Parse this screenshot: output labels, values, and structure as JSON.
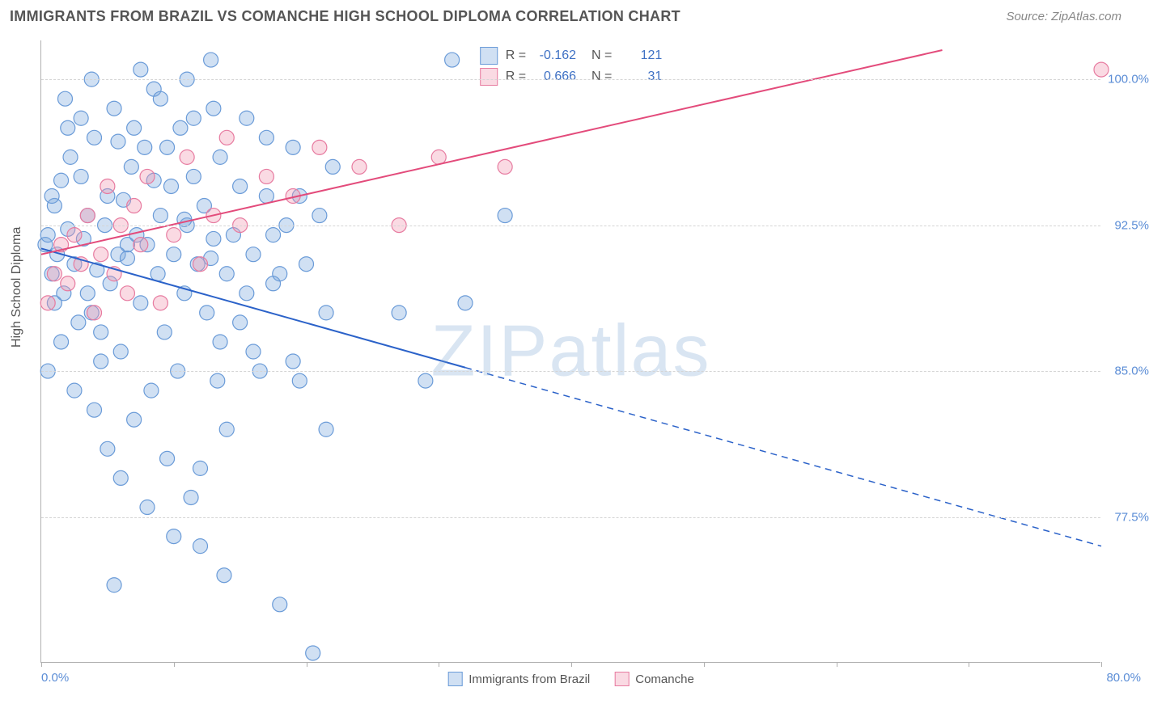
{
  "header": {
    "title": "IMMIGRANTS FROM BRAZIL VS COMANCHE HIGH SCHOOL DIPLOMA CORRELATION CHART",
    "source": "Source: ZipAtlas.com"
  },
  "watermark": "ZIPatlas",
  "chart": {
    "type": "scatter",
    "background_color": "#ffffff",
    "grid_color": "#d5d5d5",
    "axis_color": "#b0b0b0",
    "ylabel": "High School Diploma",
    "ylabel_fontsize": 16,
    "xlim": [
      0,
      80
    ],
    "ylim": [
      70,
      102
    ],
    "x_ticks": [
      0,
      10,
      20,
      30,
      40,
      50,
      60,
      70,
      80
    ],
    "x_min_label": "0.0%",
    "x_max_label": "80.0%",
    "y_ticks": [
      {
        "value": 77.5,
        "label": "77.5%"
      },
      {
        "value": 85.0,
        "label": "85.0%"
      },
      {
        "value": 92.5,
        "label": "92.5%"
      },
      {
        "value": 100.0,
        "label": "100.0%"
      }
    ],
    "tick_label_color": "#5b8dd6",
    "series": [
      {
        "name": "Immigrants from Brazil",
        "color_fill": "rgba(120,165,220,0.35)",
        "color_stroke": "#6a9bd8",
        "marker_radius": 9,
        "R": "-0.162",
        "N": "121",
        "trend": {
          "x1": 0,
          "y1": 91.3,
          "x2": 80,
          "y2": 76.0,
          "solid_until_x": 32,
          "color": "#2b62c9",
          "width": 2
        },
        "points": [
          [
            0.3,
            91.5
          ],
          [
            0.5,
            92.0
          ],
          [
            0.8,
            90.0
          ],
          [
            1.0,
            93.5
          ],
          [
            1.2,
            91.0
          ],
          [
            1.5,
            94.8
          ],
          [
            1.7,
            89.0
          ],
          [
            2.0,
            92.3
          ],
          [
            2.2,
            96.0
          ],
          [
            2.5,
            90.5
          ],
          [
            2.8,
            87.5
          ],
          [
            3.0,
            95.0
          ],
          [
            3.2,
            91.8
          ],
          [
            3.5,
            93.0
          ],
          [
            3.8,
            88.0
          ],
          [
            4.0,
            97.0
          ],
          [
            4.2,
            90.2
          ],
          [
            4.5,
            85.5
          ],
          [
            4.8,
            92.5
          ],
          [
            5.0,
            94.0
          ],
          [
            5.2,
            89.5
          ],
          [
            5.5,
            98.5
          ],
          [
            5.8,
            91.0
          ],
          [
            6.0,
            86.0
          ],
          [
            6.2,
            93.8
          ],
          [
            6.5,
            90.8
          ],
          [
            6.8,
            95.5
          ],
          [
            7.0,
            82.5
          ],
          [
            7.2,
            92.0
          ],
          [
            7.5,
            88.5
          ],
          [
            7.8,
            96.5
          ],
          [
            8.0,
            91.5
          ],
          [
            8.3,
            84.0
          ],
          [
            8.5,
            99.5
          ],
          [
            8.8,
            90.0
          ],
          [
            9.0,
            93.0
          ],
          [
            9.3,
            87.0
          ],
          [
            9.5,
            80.5
          ],
          [
            9.8,
            94.5
          ],
          [
            10.0,
            91.0
          ],
          [
            10.3,
            85.0
          ],
          [
            10.5,
            97.5
          ],
          [
            10.8,
            89.0
          ],
          [
            11.0,
            92.5
          ],
          [
            11.3,
            78.5
          ],
          [
            11.5,
            95.0
          ],
          [
            11.8,
            90.5
          ],
          [
            12.0,
            76.0
          ],
          [
            12.3,
            93.5
          ],
          [
            12.5,
            88.0
          ],
          [
            12.8,
            101.0
          ],
          [
            13.0,
            91.8
          ],
          [
            13.3,
            84.5
          ],
          [
            13.5,
            96.0
          ],
          [
            13.8,
            74.5
          ],
          [
            14.0,
            90.0
          ],
          [
            14.5,
            92.0
          ],
          [
            15.0,
            87.5
          ],
          [
            15.5,
            98.0
          ],
          [
            16.0,
            91.0
          ],
          [
            16.5,
            85.0
          ],
          [
            17.0,
            94.0
          ],
          [
            17.5,
            89.5
          ],
          [
            18.0,
            73.0
          ],
          [
            18.5,
            92.5
          ],
          [
            19.0,
            96.5
          ],
          [
            19.5,
            84.5
          ],
          [
            20.0,
            90.5
          ],
          [
            20.5,
            70.5
          ],
          [
            21.0,
            93.0
          ],
          [
            21.5,
            88.0
          ],
          [
            22.0,
            95.5
          ],
          [
            4.0,
            83.0
          ],
          [
            5.0,
            81.0
          ],
          [
            6.0,
            79.5
          ],
          [
            3.0,
            98.0
          ],
          [
            2.0,
            97.5
          ],
          [
            1.5,
            86.5
          ],
          [
            0.8,
            94.0
          ],
          [
            7.5,
            100.5
          ],
          [
            9.0,
            99.0
          ],
          [
            11.0,
            100.0
          ],
          [
            13.0,
            98.5
          ],
          [
            5.5,
            74.0
          ],
          [
            10.0,
            76.5
          ],
          [
            8.0,
            78.0
          ],
          [
            12.0,
            80.0
          ],
          [
            14.0,
            82.0
          ],
          [
            6.5,
            91.5
          ],
          [
            3.5,
            89.0
          ],
          [
            1.0,
            88.5
          ],
          [
            0.5,
            85.0
          ],
          [
            2.5,
            84.0
          ],
          [
            4.5,
            87.0
          ],
          [
            16.0,
            86.0
          ],
          [
            18.0,
            90.0
          ],
          [
            15.0,
            94.5
          ],
          [
            17.0,
            97.0
          ],
          [
            19.0,
            85.5
          ],
          [
            7.0,
            97.5
          ],
          [
            9.5,
            96.5
          ],
          [
            11.5,
            98.0
          ],
          [
            13.5,
            86.5
          ],
          [
            15.5,
            89.0
          ],
          [
            17.5,
            92.0
          ],
          [
            19.5,
            94.0
          ],
          [
            21.5,
            82.0
          ],
          [
            1.8,
            99.0
          ],
          [
            3.8,
            100.0
          ],
          [
            5.8,
            96.8
          ],
          [
            8.5,
            94.8
          ],
          [
            10.8,
            92.8
          ],
          [
            12.8,
            90.8
          ],
          [
            27.0,
            88.0
          ],
          [
            29.0,
            84.5
          ],
          [
            32.0,
            88.5
          ],
          [
            35.0,
            93.0
          ],
          [
            31.0,
            101.0
          ]
        ]
      },
      {
        "name": "Comanche",
        "color_fill": "rgba(240,150,175,0.35)",
        "color_stroke": "#e77ba0",
        "marker_radius": 9,
        "R": "0.666",
        "N": "31",
        "trend": {
          "x1": 0,
          "y1": 91.0,
          "x2": 68,
          "y2": 101.5,
          "solid_until_x": 68,
          "color": "#e34b7b",
          "width": 2
        },
        "points": [
          [
            0.5,
            88.5
          ],
          [
            1.0,
            90.0
          ],
          [
            1.5,
            91.5
          ],
          [
            2.0,
            89.5
          ],
          [
            2.5,
            92.0
          ],
          [
            3.0,
            90.5
          ],
          [
            3.5,
            93.0
          ],
          [
            4.0,
            88.0
          ],
          [
            4.5,
            91.0
          ],
          [
            5.0,
            94.5
          ],
          [
            5.5,
            90.0
          ],
          [
            6.0,
            92.5
          ],
          [
            6.5,
            89.0
          ],
          [
            7.0,
            93.5
          ],
          [
            7.5,
            91.5
          ],
          [
            8.0,
            95.0
          ],
          [
            9.0,
            88.5
          ],
          [
            10.0,
            92.0
          ],
          [
            11.0,
            96.0
          ],
          [
            12.0,
            90.5
          ],
          [
            13.0,
            93.0
          ],
          [
            14.0,
            97.0
          ],
          [
            15.0,
            92.5
          ],
          [
            17.0,
            95.0
          ],
          [
            19.0,
            94.0
          ],
          [
            21.0,
            96.5
          ],
          [
            24.0,
            95.5
          ],
          [
            27.0,
            92.5
          ],
          [
            30.0,
            96.0
          ],
          [
            35.0,
            95.5
          ],
          [
            80.0,
            100.5
          ]
        ]
      }
    ]
  },
  "bottom_legend": [
    {
      "label": "Immigrants from Brazil",
      "fill": "rgba(120,165,220,0.35)",
      "stroke": "#6a9bd8"
    },
    {
      "label": "Comanche",
      "fill": "rgba(240,150,175,0.35)",
      "stroke": "#e77ba0"
    }
  ]
}
